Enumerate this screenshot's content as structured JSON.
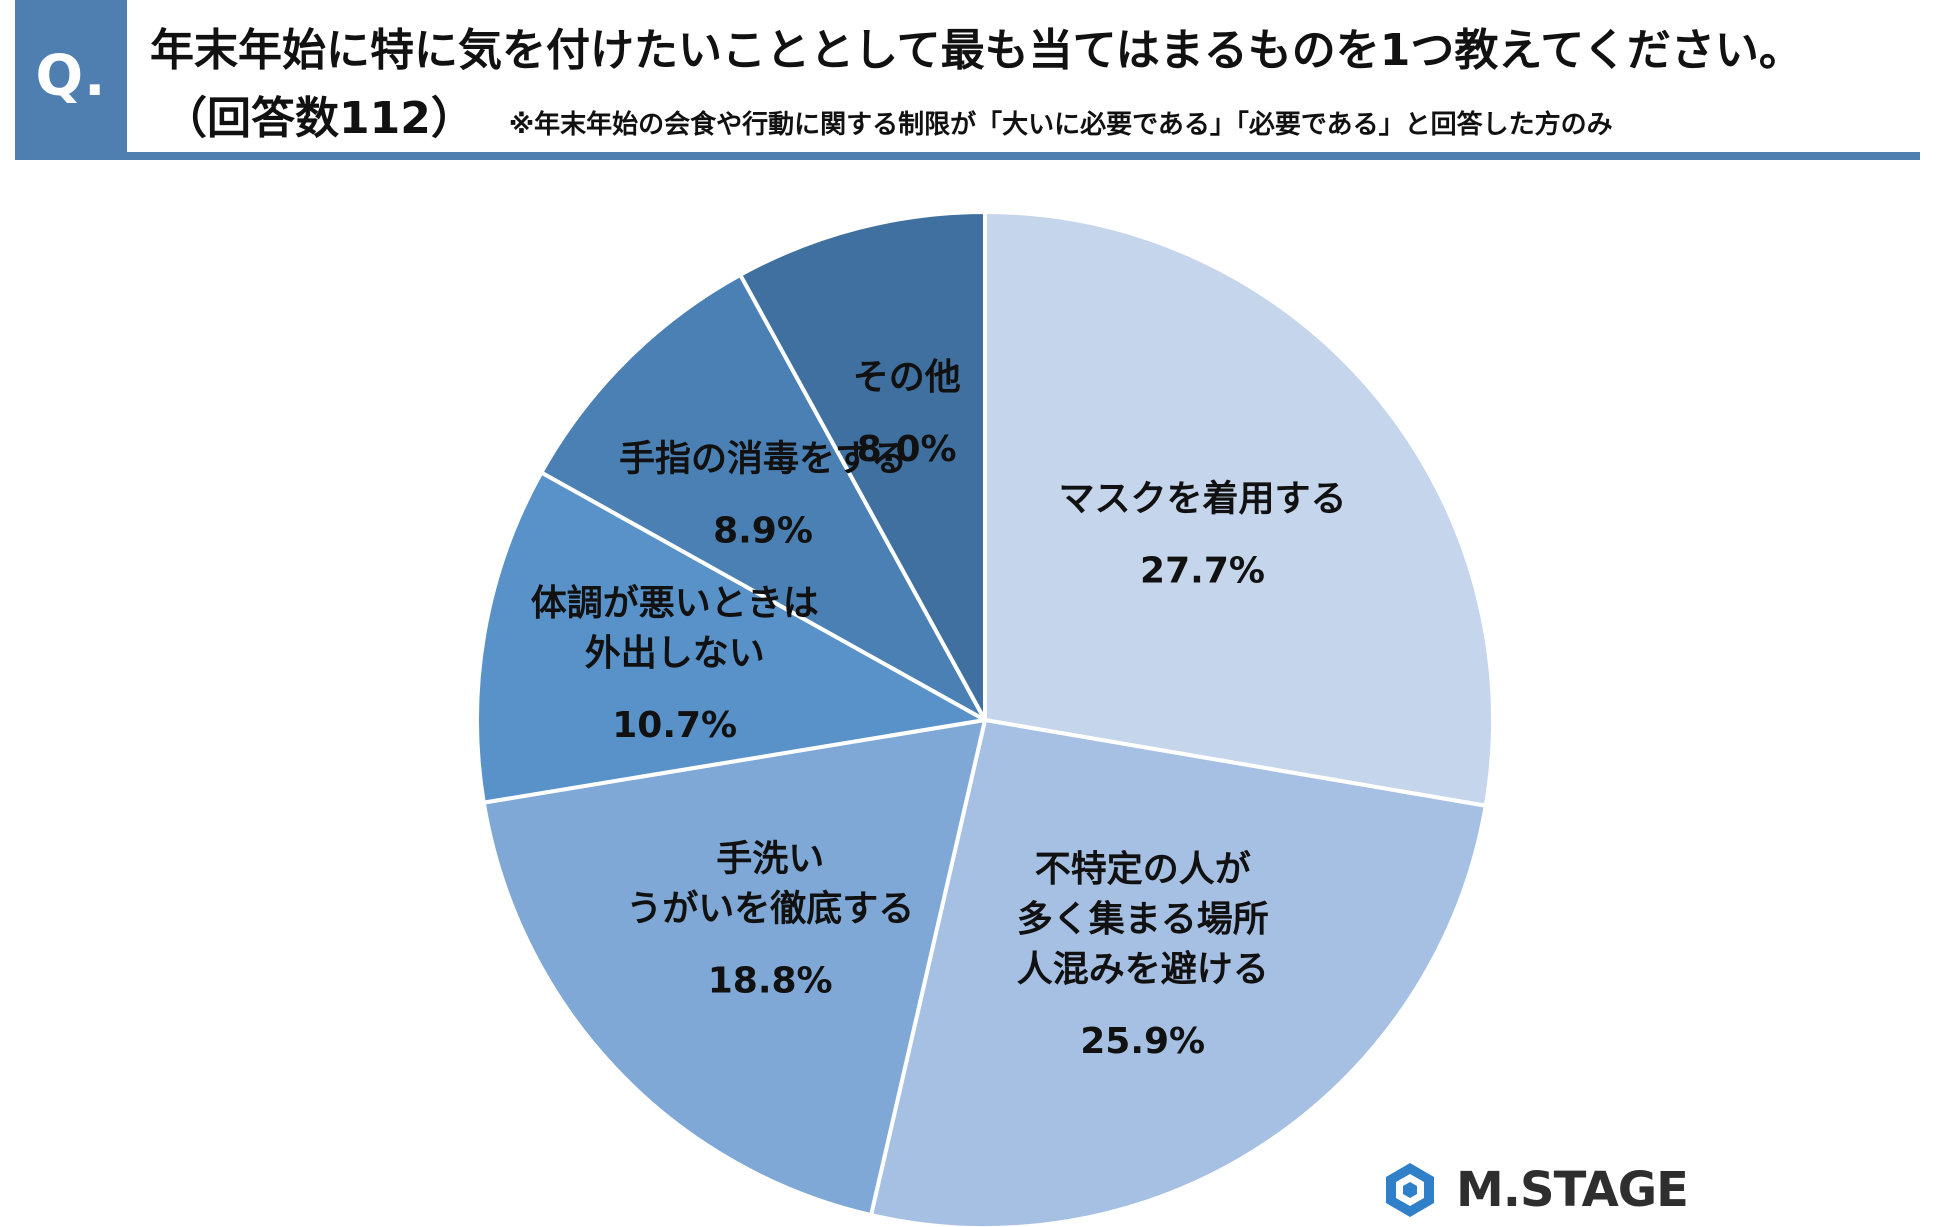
{
  "header": {
    "badge": "Q.",
    "question": "年末年始に特に気を付けたいこととして最も当てはまるものを1つ教えてください。",
    "respondents": "（回答数112）",
    "note": "※年末年始の会食や行動に関する制限が「大いに必要である」「必要である」と回答した方のみ"
  },
  "chart_data": {
    "type": "pie",
    "title": "",
    "start": "top",
    "direction": "clockwise",
    "slices": [
      {
        "label": [
          "マスクを着用する"
        ],
        "value": 27.7,
        "value_label": "27.7%",
        "color": "#c5d5eb"
      },
      {
        "label": [
          "不特定の人が",
          "多く集まる場所",
          "人混みを避ける"
        ],
        "value": 25.9,
        "value_label": "25.9%",
        "color": "#a6c0e3"
      },
      {
        "label": [
          "手洗い",
          "うがいを徹底する"
        ],
        "value": 18.8,
        "value_label": "18.8%",
        "color": "#7fa8d6"
      },
      {
        "label": [
          "体調が悪いときは",
          "外出しない"
        ],
        "value": 10.7,
        "value_label": "10.7%",
        "color": "#5892c8"
      },
      {
        "label": [
          "手指の消毒をする"
        ],
        "value": 8.9,
        "value_label": "8.9%",
        "color": "#4a80b3"
      },
      {
        "label": [
          "その他"
        ],
        "value": 8.0,
        "value_label": "8.0%",
        "color": "#40709f"
      }
    ]
  },
  "logo": {
    "text": "M.STAGE",
    "icon": "hexagon-logo-icon"
  },
  "colors": {
    "accent": "#4f7fb1",
    "divider": "#ffffff",
    "text": "#111111"
  }
}
